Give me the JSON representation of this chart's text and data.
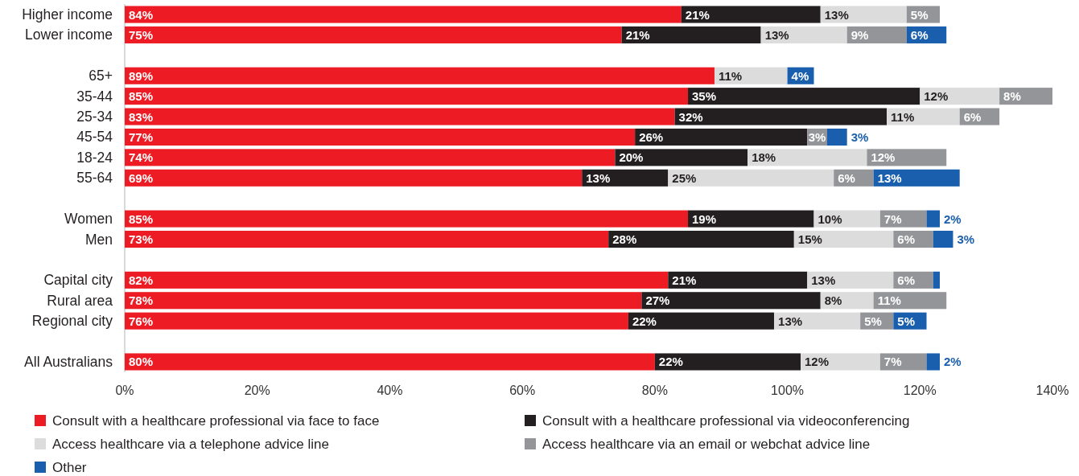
{
  "chart_data": {
    "type": "bar",
    "orientation": "horizontal",
    "stacked": true,
    "legend": "bottom",
    "categories": [
      "Higher income",
      "Lower income",
      null,
      "65+",
      "35-44",
      "25-34",
      "45-54",
      "18-24",
      "55-64",
      null,
      "Women",
      "Men",
      null,
      "Capital city",
      "Rural area",
      "Regional city",
      null,
      "All Australians"
    ],
    "xlim": [
      0,
      140
    ],
    "xticks": [
      {
        "value": 0,
        "label": "0%"
      },
      {
        "value": 20,
        "label": "20%"
      },
      {
        "value": 40,
        "label": "40%"
      },
      {
        "value": 60,
        "label": "60%"
      },
      {
        "value": 80,
        "label": "80%"
      },
      {
        "value": 100,
        "label": "100%"
      },
      {
        "value": 120,
        "label": "120%"
      },
      {
        "value": 140,
        "label": "140%"
      }
    ],
    "series": [
      {
        "name": "Consult with a healthcare professional via face to face",
        "color": "#ed1c24",
        "values": [
          84,
          75,
          null,
          89,
          85,
          83,
          77,
          74,
          69,
          null,
          85,
          73,
          null,
          82,
          78,
          76,
          null,
          80
        ],
        "value_labels": [
          "84%",
          "75%",
          null,
          "89%",
          "85%",
          "83%",
          "77%",
          "74%",
          "69%",
          null,
          "85%",
          "73%",
          null,
          "82%",
          "78%",
          "76%",
          null,
          "80%"
        ]
      },
      {
        "name": "Consult with a healthcare professional via videoconferencing",
        "color": "#231f20",
        "values": [
          21,
          21,
          null,
          null,
          35,
          32,
          26,
          20,
          13,
          null,
          19,
          28,
          null,
          21,
          27,
          22,
          null,
          22
        ],
        "value_labels": [
          "21%",
          "21%",
          null,
          null,
          "35%",
          "32%",
          "26%",
          "20%",
          "13%",
          null,
          "19%",
          "28%",
          null,
          "21%",
          "27%",
          "22%",
          null,
          "22%"
        ]
      },
      {
        "name": "Access healthcare via a telephone advice line",
        "color": "#dcdcdd",
        "values": [
          13,
          13,
          null,
          11,
          12,
          11,
          null,
          18,
          25,
          null,
          10,
          15,
          null,
          13,
          8,
          13,
          null,
          12
        ],
        "value_labels": [
          "13%",
          "13%",
          null,
          "11%",
          "12%",
          "11%",
          null,
          "18%",
          "25%",
          null,
          "10%",
          "15%",
          null,
          "13%",
          "8%",
          "13%",
          null,
          "12%"
        ]
      },
      {
        "name": "Access healthcare via an email or webchat advice line",
        "color": "#939598",
        "values": [
          5,
          9,
          null,
          null,
          8,
          6,
          3,
          12,
          6,
          null,
          7,
          6,
          null,
          6,
          11,
          5,
          null,
          7
        ],
        "value_labels": [
          "5%",
          "9%",
          null,
          null,
          "8%",
          "6%",
          "3%",
          "12%",
          "6%",
          null,
          "7%",
          "6%",
          null,
          "6%",
          "11%",
          "5%",
          null,
          "7%"
        ]
      },
      {
        "name": "Other",
        "color": "#1a5fad",
        "values": [
          null,
          6,
          null,
          4,
          null,
          null,
          3,
          null,
          13,
          null,
          2,
          3,
          null,
          1,
          null,
          5,
          null,
          2
        ],
        "value_labels": [
          null,
          "6%",
          null,
          "4%",
          null,
          null,
          "3%",
          null,
          "13%",
          null,
          "2%",
          "3%",
          null,
          null,
          null,
          "5%",
          null,
          "2%"
        ]
      }
    ]
  }
}
